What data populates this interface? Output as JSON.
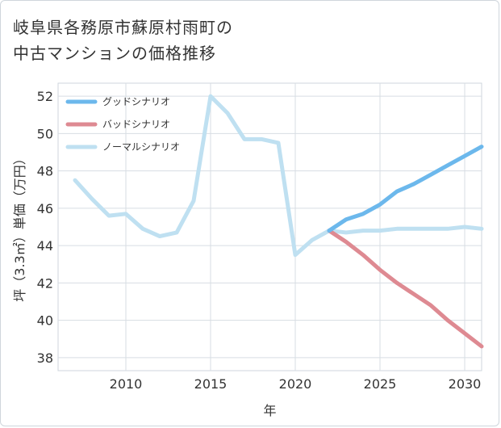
{
  "chart_data": {
    "type": "line",
    "title_lines": [
      "岐阜県各務原市蘇原村雨町の",
      "中古マンションの価格推移"
    ],
    "xlabel": "年",
    "ylabel": "坪（3.3㎡）単価（万円）",
    "x_ticks": [
      2010,
      2015,
      2020,
      2025,
      2030
    ],
    "x_tick_labels": [
      "2010",
      "2015",
      "2020",
      "2025",
      "2030"
    ],
    "y_ticks": [
      38,
      40,
      42,
      44,
      46,
      48,
      50,
      52
    ],
    "y_tick_labels": [
      "38",
      "40",
      "42",
      "44",
      "46",
      "48",
      "50",
      "52"
    ],
    "xlim": [
      2006.0,
      2031.0
    ],
    "ylim": [
      37.3,
      52.7
    ],
    "grid": true,
    "legend_position": "top-left",
    "series": [
      {
        "name": "グッドシナリオ",
        "color": "#6cb8ec",
        "x": [
          2022,
          2023,
          2024,
          2025,
          2026,
          2027,
          2028,
          2029,
          2030,
          2031
        ],
        "values": [
          44.8,
          45.4,
          45.7,
          46.2,
          46.9,
          47.3,
          47.8,
          48.3,
          48.8,
          49.3
        ]
      },
      {
        "name": "バッドシナリオ",
        "color": "#de8a92",
        "x": [
          2022,
          2023,
          2024,
          2025,
          2026,
          2027,
          2028,
          2029,
          2030,
          2031
        ],
        "values": [
          44.8,
          44.2,
          43.5,
          42.7,
          42.0,
          41.4,
          40.8,
          40.0,
          39.3,
          38.6
        ]
      },
      {
        "name": "ノーマルシナリオ",
        "color": "#bfe0f1",
        "x": [
          2007,
          2008,
          2009,
          2010,
          2011,
          2012,
          2013,
          2014,
          2015,
          2016,
          2017,
          2018,
          2019,
          2020,
          2021,
          2022,
          2023,
          2024,
          2025,
          2026,
          2027,
          2028,
          2029,
          2030,
          2031
        ],
        "values": [
          47.5,
          46.5,
          45.6,
          45.7,
          44.9,
          44.5,
          44.7,
          46.4,
          52.0,
          51.1,
          49.7,
          49.7,
          49.5,
          43.5,
          44.3,
          44.8,
          44.7,
          44.8,
          44.8,
          44.9,
          44.9,
          44.9,
          44.9,
          45.0,
          44.9
        ]
      }
    ]
  }
}
